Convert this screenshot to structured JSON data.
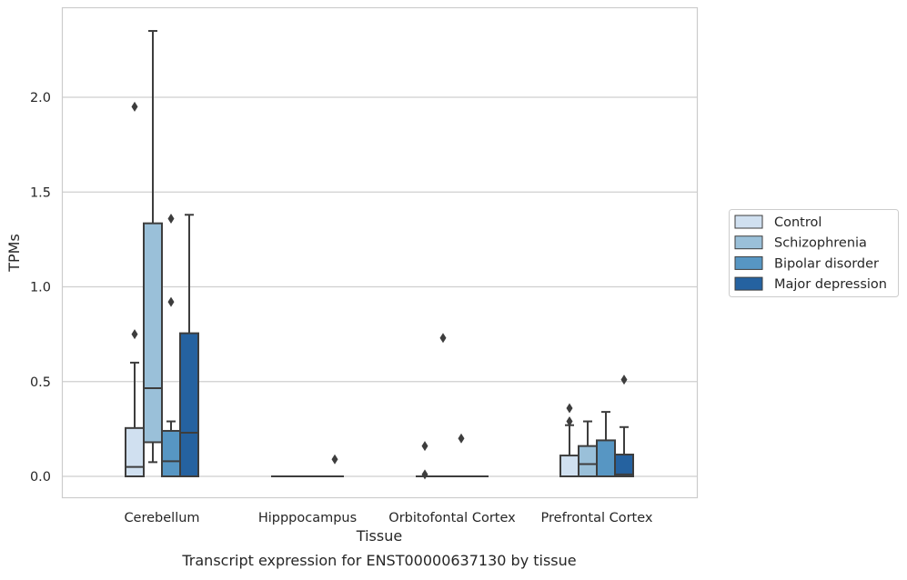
{
  "caption": "Transcript expression for ENST00000637130 by tissue",
  "chart_data": {
    "type": "box",
    "xlabel": "Tissue",
    "ylabel": "TPMs",
    "ylim": [
      -0.11,
      2.48
    ],
    "yticks": [
      "0.0",
      "0.5",
      "1.0",
      "1.5",
      "2.0"
    ],
    "grid": "horizontal",
    "legend_position": "right",
    "categories": [
      "Cerebellum",
      "Hipppocampus",
      "Orbitofontal Cortex",
      "Prefrontal Cortex"
    ],
    "series": [
      {
        "name": "Control",
        "color": "#d0e0f0",
        "boxes": [
          {
            "q1": 0.0,
            "median": 0.05,
            "q3": 0.255,
            "whisker_low": 0.0,
            "whisker_high": 0.6,
            "outliers": [
              0.75,
              1.95
            ]
          },
          {
            "q1": 0.0,
            "median": 0.0,
            "q3": 0.0,
            "whisker_low": 0.0,
            "whisker_high": 0.0,
            "outliers": []
          },
          {
            "q1": 0.0,
            "median": 0.0,
            "q3": 0.0,
            "whisker_low": 0.0,
            "whisker_high": 0.0,
            "outliers": [
              0.16,
              0.01
            ]
          },
          {
            "q1": 0.0,
            "median": 0.0,
            "q3": 0.11,
            "whisker_low": 0.0,
            "whisker_high": 0.27,
            "outliers": [
              0.29,
              0.36
            ]
          }
        ]
      },
      {
        "name": "Schizophrenia",
        "color": "#9ac0d9",
        "boxes": [
          {
            "q1": 0.18,
            "median": 0.465,
            "q3": 1.335,
            "whisker_low": 0.075,
            "whisker_high": 2.35,
            "outliers": []
          },
          {
            "q1": 0.0,
            "median": 0.0,
            "q3": 0.0,
            "whisker_low": 0.0,
            "whisker_high": 0.0,
            "outliers": []
          },
          {
            "q1": 0.0,
            "median": 0.0,
            "q3": 0.0,
            "whisker_low": 0.0,
            "whisker_high": 0.0,
            "outliers": [
              0.73
            ]
          },
          {
            "q1": 0.0,
            "median": 0.065,
            "q3": 0.16,
            "whisker_low": 0.0,
            "whisker_high": 0.29,
            "outliers": []
          }
        ]
      },
      {
        "name": "Bipolar disorder",
        "color": "#5796c3",
        "boxes": [
          {
            "q1": 0.0,
            "median": 0.08,
            "q3": 0.24,
            "whisker_low": 0.0,
            "whisker_high": 0.29,
            "outliers": [
              0.92,
              1.36
            ]
          },
          {
            "q1": 0.0,
            "median": 0.0,
            "q3": 0.0,
            "whisker_low": 0.0,
            "whisker_high": 0.0,
            "outliers": []
          },
          {
            "q1": 0.0,
            "median": 0.0,
            "q3": 0.0,
            "whisker_low": 0.0,
            "whisker_high": 0.0,
            "outliers": [
              0.2
            ]
          },
          {
            "q1": 0.0,
            "median": 0.0,
            "q3": 0.19,
            "whisker_low": 0.0,
            "whisker_high": 0.34,
            "outliers": []
          }
        ]
      },
      {
        "name": "Major depression",
        "color": "#2562a0",
        "boxes": [
          {
            "q1": 0.0,
            "median": 0.23,
            "q3": 0.755,
            "whisker_low": 0.0,
            "whisker_high": 1.38,
            "outliers": []
          },
          {
            "q1": 0.0,
            "median": 0.0,
            "q3": 0.0,
            "whisker_low": 0.0,
            "whisker_high": 0.0,
            "outliers": [
              0.09
            ]
          },
          {
            "q1": 0.0,
            "median": 0.0,
            "q3": 0.0,
            "whisker_low": 0.0,
            "whisker_high": 0.0,
            "outliers": []
          },
          {
            "q1": 0.0,
            "median": 0.01,
            "q3": 0.115,
            "whisker_low": 0.0,
            "whisker_high": 0.26,
            "outliers": [
              0.51
            ]
          }
        ]
      }
    ]
  }
}
